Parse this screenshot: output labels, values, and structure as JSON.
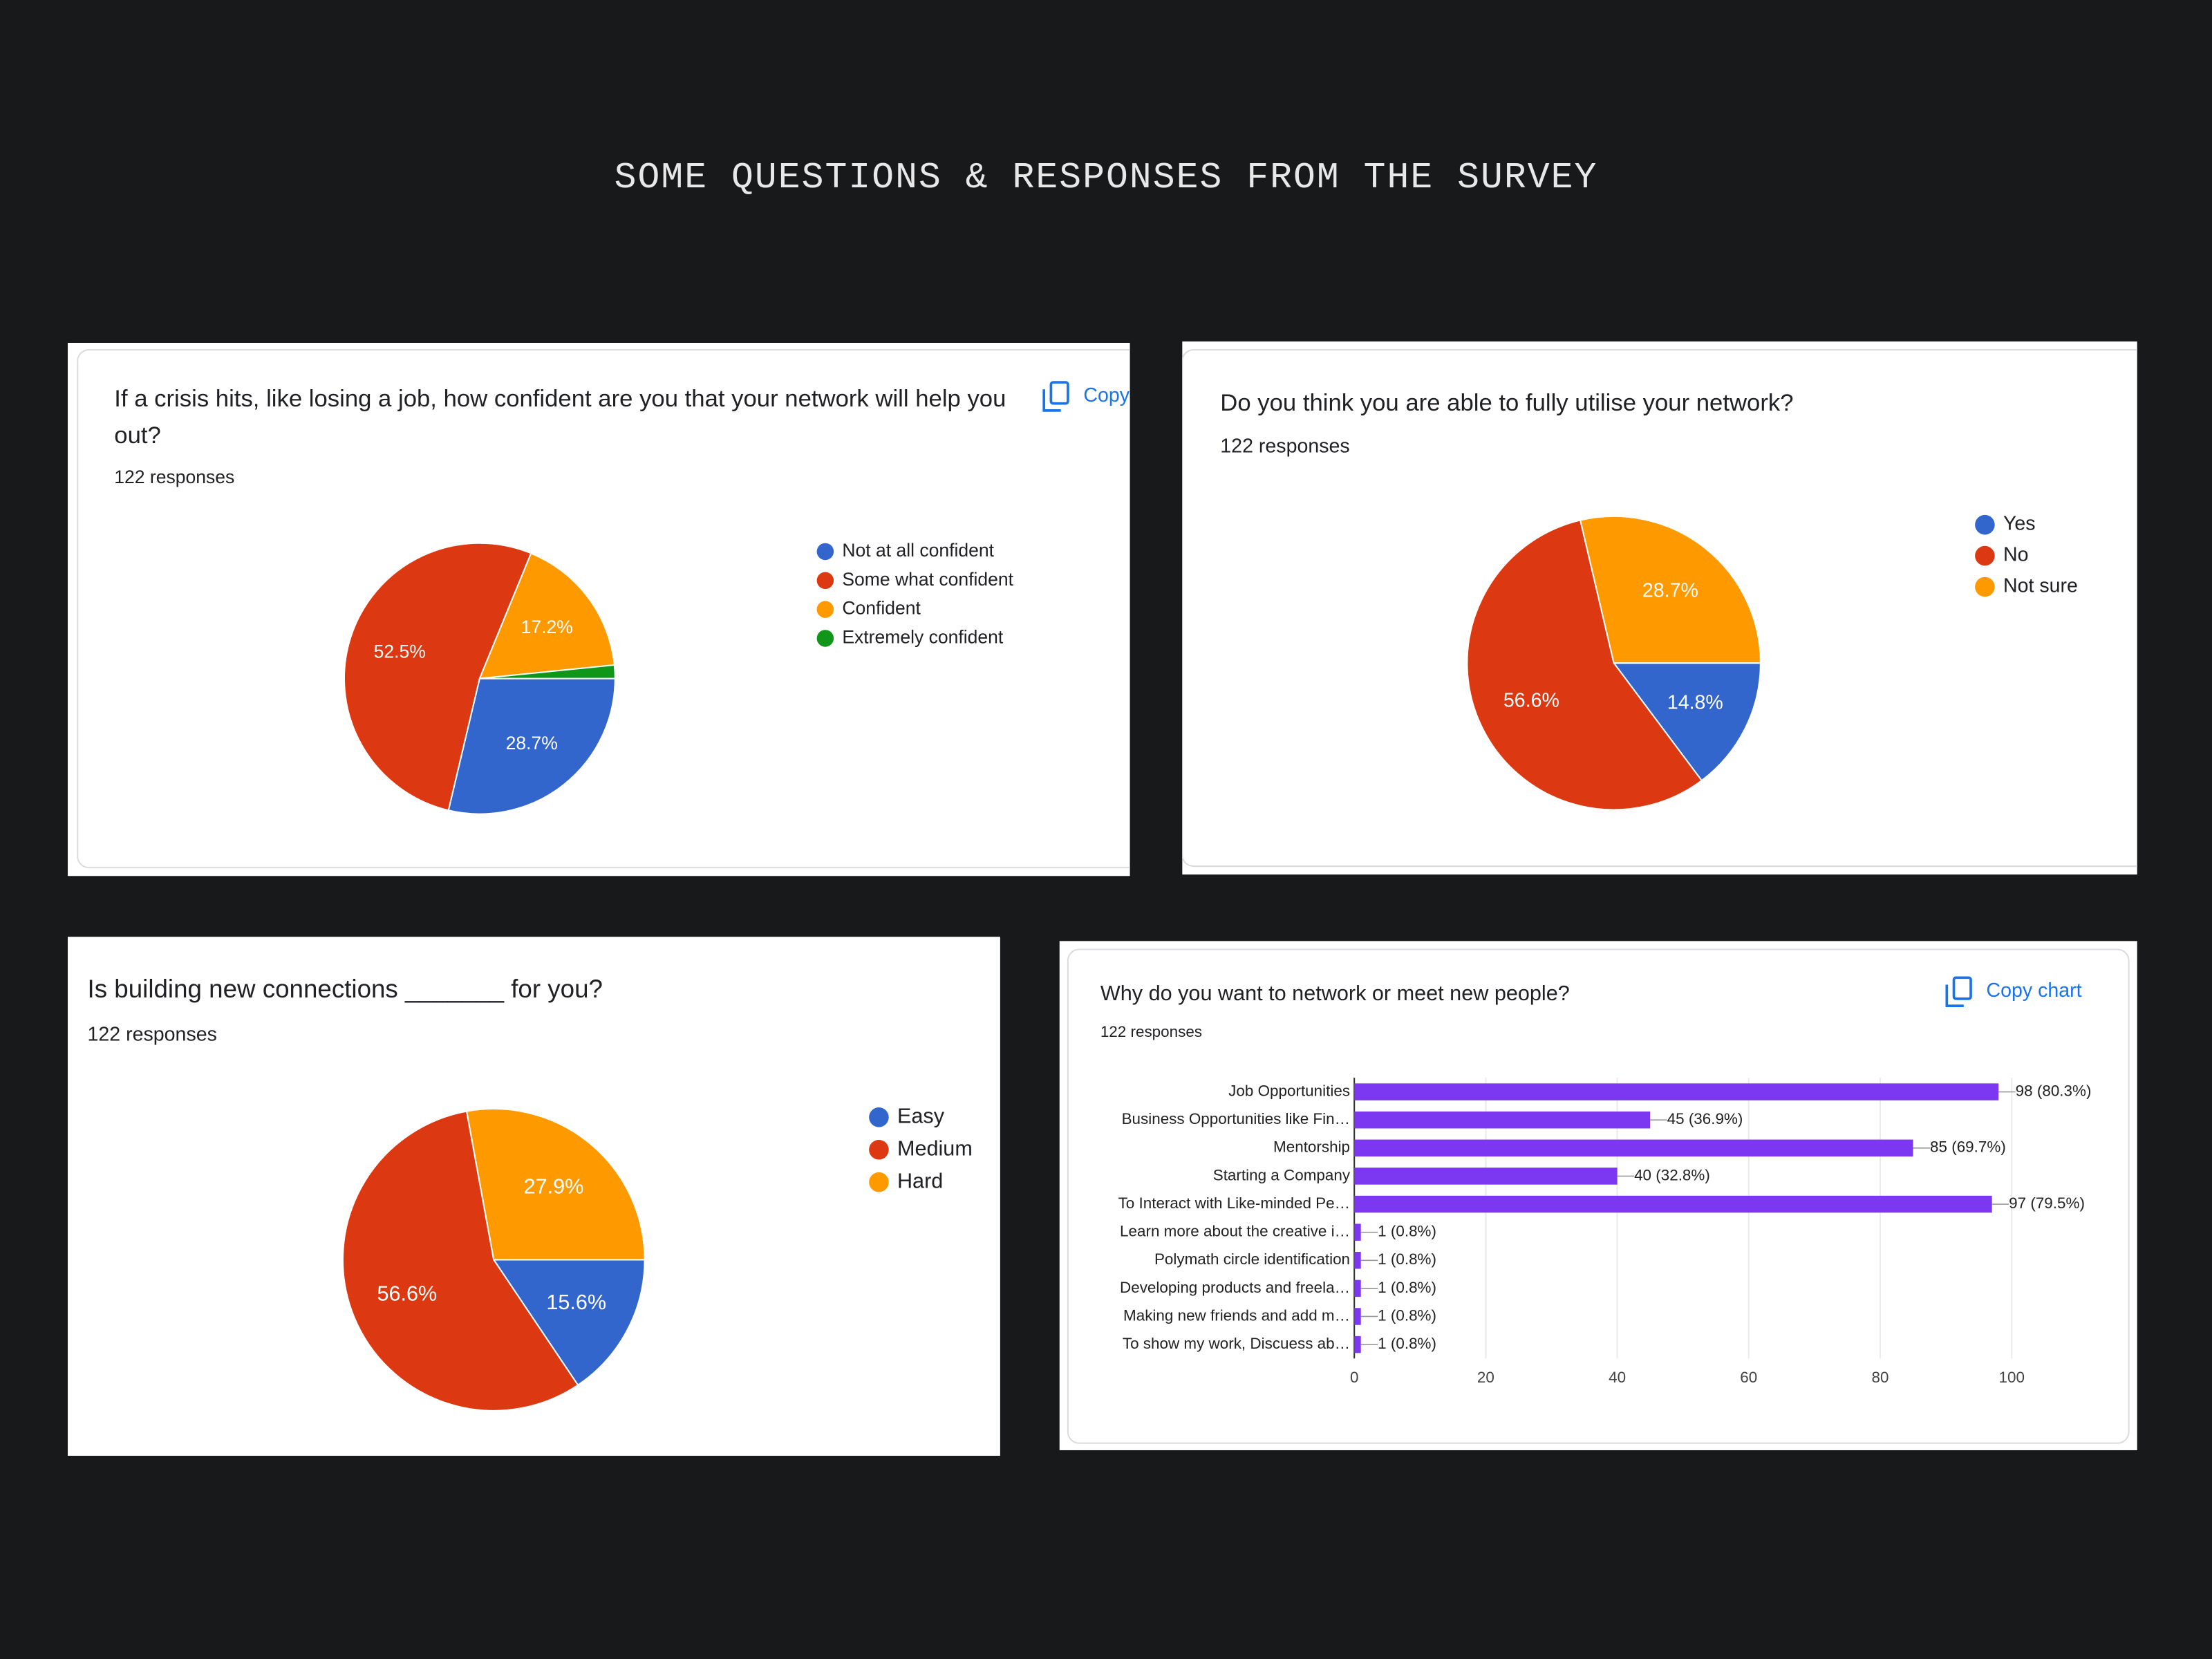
{
  "title": "SOME QUESTIONS & RESPONSES FROM THE SURVEY",
  "chart_data": [
    {
      "type": "pie",
      "title": "If a crisis hits, like losing a job, how confident are you that your network will help you out?",
      "subtitle": "122 responses",
      "copy_label": "Copy chart",
      "categories": [
        "Not at all confident",
        "Some what confident",
        "Confident",
        "Extremely confident"
      ],
      "values": [
        28.7,
        52.5,
        17.2,
        1.6
      ],
      "value_labels": [
        "28.7%",
        "52.5%",
        "17.2%",
        null
      ],
      "colors": [
        "#3366cc",
        "#dc3912",
        "#ff9900",
        "#109618"
      ]
    },
    {
      "type": "pie",
      "title": "Do you think you are able to fully utilise your network?",
      "subtitle": "122 responses",
      "categories": [
        "Yes",
        "No",
        "Not sure"
      ],
      "values": [
        14.8,
        56.6,
        28.7
      ],
      "value_labels": [
        "14.8%",
        "56.6%",
        "28.7%"
      ],
      "colors": [
        "#3366cc",
        "#dc3912",
        "#ff9900"
      ]
    },
    {
      "type": "pie",
      "title": "Is building new connections _______ for you?",
      "subtitle": "122 responses",
      "categories": [
        "Easy",
        "Medium",
        "Hard"
      ],
      "values": [
        15.6,
        56.6,
        27.9
      ],
      "value_labels": [
        "15.6%",
        "56.6%",
        "27.9%"
      ],
      "colors": [
        "#3366cc",
        "#dc3912",
        "#ff9900"
      ]
    },
    {
      "type": "bar",
      "orientation": "horizontal",
      "title": "Why do you want to network or meet new people?",
      "subtitle": "122 responses",
      "copy_label": "Copy chart",
      "categories": [
        "Job Opportunities",
        "Business Opportunities like Fin…",
        "Mentorship",
        "Starting a Company",
        "To Interact with Like-minded Pe…",
        "Learn more about the creative i…",
        "Polymath circle identification",
        "Developing products and freela…",
        "Making new friends and add m…",
        "To show my work, Discuess ab…"
      ],
      "values": [
        98,
        45,
        85,
        40,
        97,
        1,
        1,
        1,
        1,
        1
      ],
      "value_labels": [
        "98 (80.3%)",
        "45 (36.9%)",
        "85 (69.7%)",
        "40 (32.8%)",
        "97 (79.5%)",
        "1 (0.8%)",
        "1 (0.8%)",
        "1 (0.8%)",
        "1 (0.8%)",
        "1 (0.8%)"
      ],
      "color": "#7b38f0",
      "xlim": [
        0,
        100
      ],
      "xticks": [
        0,
        20,
        40,
        60,
        80,
        100
      ],
      "grid": true
    }
  ]
}
